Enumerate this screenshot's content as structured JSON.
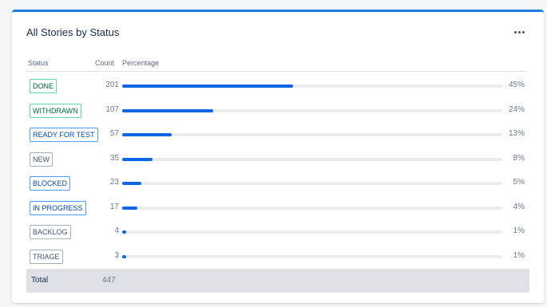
{
  "card": {
    "title": "All Stories by Status",
    "more_icon": "more-horizontal-icon"
  },
  "table": {
    "headers": {
      "status": "Status",
      "count": "Count",
      "percentage": "Percentage"
    },
    "rows": [
      {
        "status": "DONE",
        "count": "201",
        "percentage": "45%",
        "fraction": 0.45,
        "color": "green"
      },
      {
        "status": "WITHDRAWN",
        "count": "107",
        "percentage": "24%",
        "fraction": 0.24,
        "color": "green"
      },
      {
        "status": "READY FOR TEST",
        "count": "57",
        "percentage": "13%",
        "fraction": 0.13,
        "color": "blue"
      },
      {
        "status": "NEW",
        "count": "35",
        "percentage": "8%",
        "fraction": 0.08,
        "color": "grey"
      },
      {
        "status": "BLOCKED",
        "count": "23",
        "percentage": "5%",
        "fraction": 0.05,
        "color": "blue"
      },
      {
        "status": "IN PROGRESS",
        "count": "17",
        "percentage": "4%",
        "fraction": 0.04,
        "color": "blue"
      },
      {
        "status": "BACKLOG",
        "count": "4",
        "percentage": "1%",
        "fraction": 0.01,
        "color": "grey"
      },
      {
        "status": "TRIAGE",
        "count": "3",
        "percentage": "1%",
        "fraction": 0.01,
        "color": "grey"
      }
    ],
    "total": {
      "label": "Total",
      "count": "447"
    }
  },
  "colors": {
    "accent": "#1d7be5",
    "bar_fill": "#0c66e4",
    "bar_track": "#ebecf0"
  }
}
